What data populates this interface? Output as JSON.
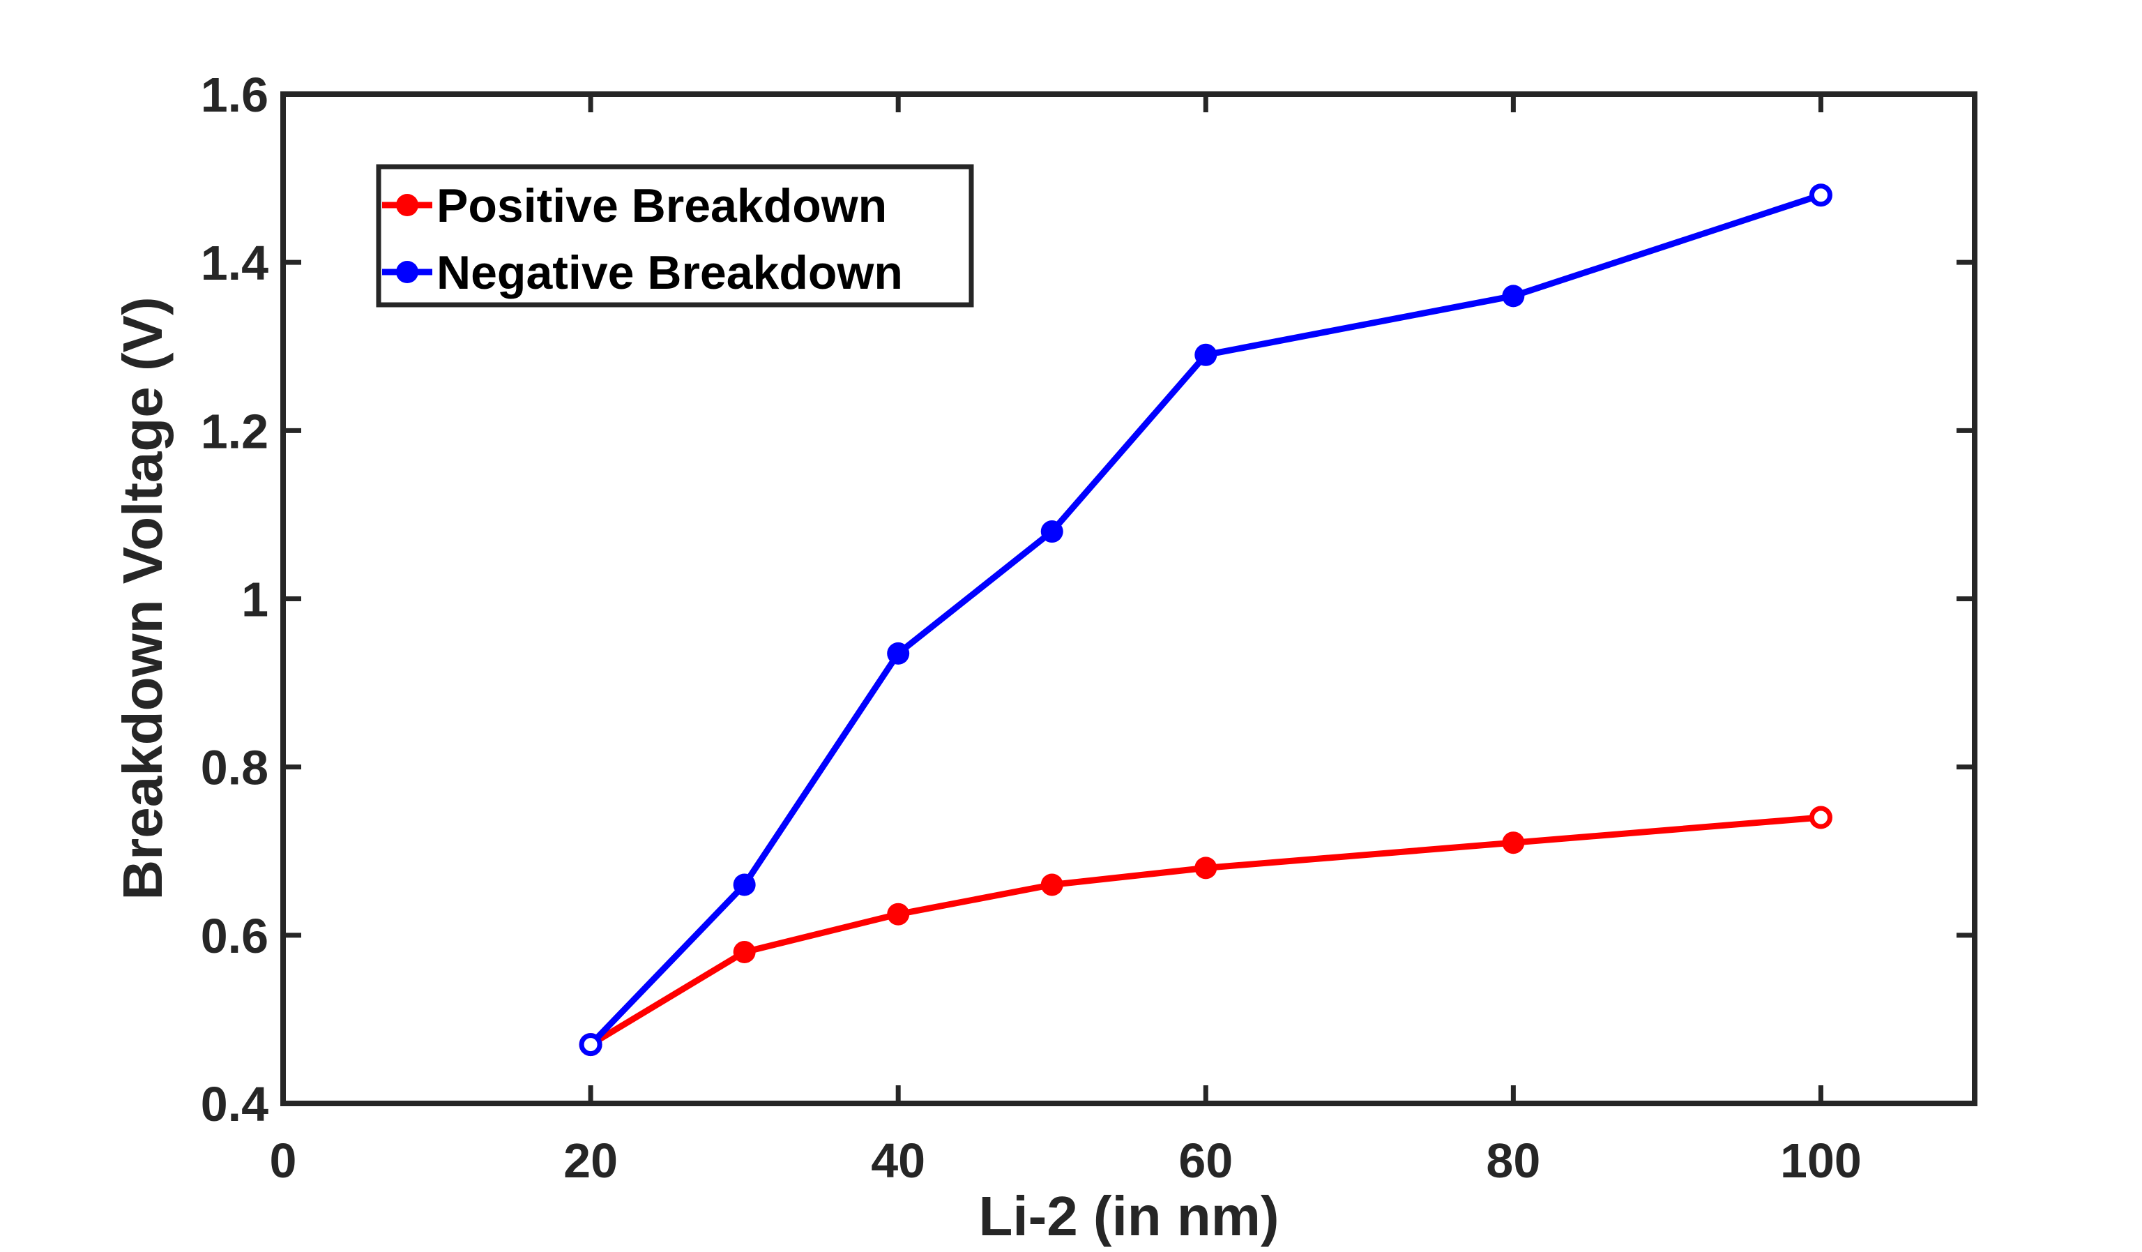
{
  "chart_data": {
    "type": "line",
    "title": "",
    "xlabel": "Li-2 (in nm)",
    "ylabel": "Breakdown Voltage (V)",
    "xlim": [
      0,
      110
    ],
    "ylim": [
      0.4,
      1.6
    ],
    "xticks": [
      0,
      20,
      40,
      60,
      80,
      100
    ],
    "xtick_labels": [
      "0",
      "20",
      "40",
      "60",
      "80",
      "100"
    ],
    "yticks": [
      0.4,
      0.6,
      0.8,
      1.0,
      1.2,
      1.4,
      1.6
    ],
    "ytick_labels": [
      "0.4",
      "0.6",
      "0.8",
      "1",
      "1.2",
      "1.4",
      "1.6"
    ],
    "grid": false,
    "legend_position": "top-left",
    "series": [
      {
        "name": "Positive Breakdown",
        "color": "#ff0000",
        "x": [
          20,
          30,
          40,
          50,
          60,
          80,
          100
        ],
        "y": [
          0.47,
          0.58,
          0.625,
          0.66,
          0.68,
          0.71,
          0.74
        ]
      },
      {
        "name": "Negative Breakdown",
        "color": "#0000ff",
        "x": [
          20,
          30,
          40,
          50,
          60,
          80,
          100
        ],
        "y": [
          0.47,
          0.66,
          0.935,
          1.08,
          1.29,
          1.36,
          1.48
        ]
      }
    ]
  }
}
